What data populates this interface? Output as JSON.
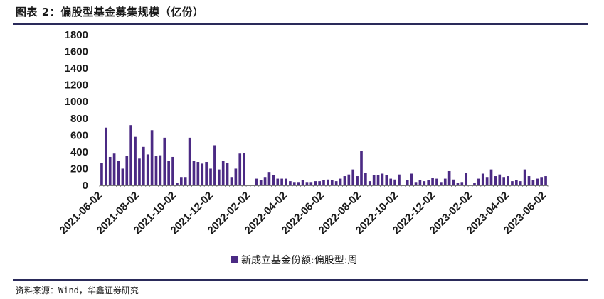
{
  "header": {
    "title": "图表 2：偏股型基金募集规模（亿份）"
  },
  "footer": {
    "source": "资料来源：Wind，华鑫证券研究"
  },
  "colors": {
    "bar": "#4b2a84",
    "rule": "#2a2a5a",
    "axis": "#7a7a7a"
  },
  "chart_data": {
    "type": "bar",
    "title": "",
    "xlabel": "",
    "ylabel": "",
    "ylim": [
      0,
      1800
    ],
    "yticks": [
      0,
      200,
      400,
      600,
      800,
      1000,
      1200,
      1400,
      1600,
      1800
    ],
    "xtick_labels": [
      "2021-06-02",
      "2021-08-02",
      "2021-10-02",
      "2021-12-02",
      "2022-02-02",
      "2022-04-02",
      "2022-06-02",
      "2022-08-02",
      "2022-10-02",
      "2022-12-02",
      "2023-02-02",
      "2023-04-02",
      "2023-06-02"
    ],
    "grid": false,
    "legend": {
      "position": "bottom"
    },
    "series": [
      {
        "name": "新成立基金份额:偏股型:周",
        "values": [
          270,
          690,
          340,
          380,
          290,
          200,
          350,
          720,
          580,
          320,
          460,
          370,
          660,
          350,
          360,
          570,
          290,
          340,
          30,
          100,
          100,
          570,
          290,
          280,
          260,
          280,
          200,
          480,
          190,
          290,
          270,
          100,
          200,
          380,
          390,
          0,
          0,
          80,
          60,
          100,
          160,
          120,
          80,
          80,
          80,
          50,
          40,
          40,
          60,
          40,
          40,
          50,
          50,
          60,
          70,
          60,
          50,
          80,
          110,
          130,
          190,
          110,
          410,
          150,
          50,
          120,
          120,
          140,
          120,
          80,
          70,
          130,
          0,
          60,
          140,
          40,
          60,
          50,
          60,
          90,
          80,
          40,
          80,
          170,
          70,
          30,
          40,
          150,
          0,
          30,
          80,
          140,
          100,
          190,
          110,
          130,
          100,
          110,
          50,
          60,
          50,
          190,
          110,
          60,
          80,
          100,
          110
        ]
      }
    ]
  }
}
